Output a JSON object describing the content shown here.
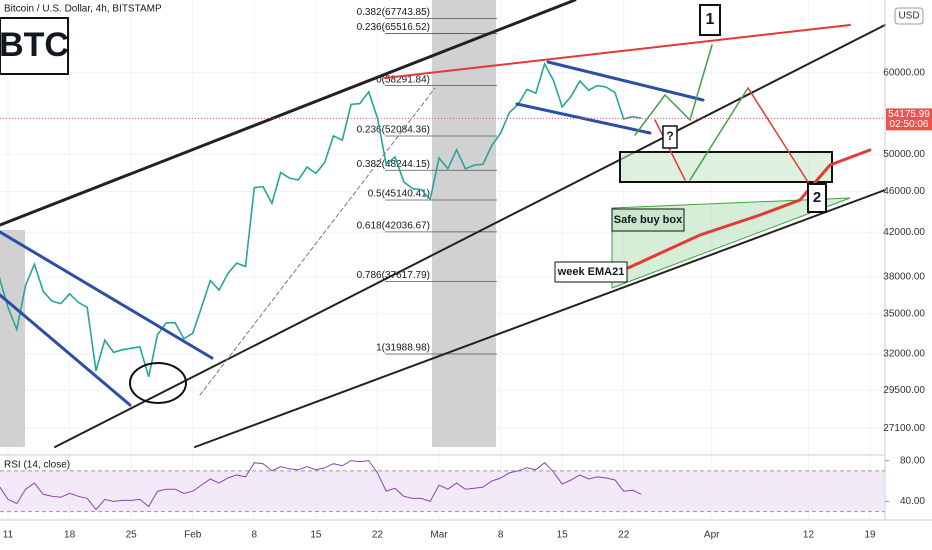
{
  "chart_data": [
    {
      "type": "line",
      "title": "Bitcoin / U.S. Dollar, 4h, BITSTAMP",
      "log_scale": true,
      "grid": true,
      "color": "#26a69a",
      "x": [
        10,
        11,
        12,
        13,
        14,
        15,
        16,
        17,
        18,
        19,
        20,
        21,
        22,
        23,
        24,
        25,
        26,
        27,
        28,
        29,
        30,
        31,
        32,
        33,
        34,
        35,
        36,
        37,
        38,
        39,
        40,
        41,
        42,
        43,
        44,
        45,
        46,
        47,
        48,
        49,
        50,
        51,
        52,
        53,
        54,
        55,
        56,
        57,
        58,
        59,
        60,
        61,
        62,
        63,
        64,
        65,
        66,
        67,
        68,
        69,
        70,
        71,
        72,
        73,
        74,
        75,
        76,
        77,
        78,
        79,
        80,
        81,
        82,
        83
      ],
      "values": [
        38000,
        35500,
        33800,
        37300,
        39100,
        36800,
        36000,
        35800,
        36600,
        35900,
        35500,
        30800,
        33000,
        32100,
        32300,
        32400,
        32500,
        30400,
        33400,
        34300,
        34300,
        33100,
        33500,
        35500,
        37700,
        36900,
        38300,
        39200,
        38900,
        46400,
        46500,
        44800,
        48000,
        47400,
        47200,
        48600,
        47900,
        49100,
        52100,
        51600,
        55900,
        56000,
        57500,
        54200,
        48900,
        49700,
        47000,
        46300,
        46200,
        45200,
        49600,
        48400,
        50500,
        48400,
        48800,
        48900,
        51000,
        52400,
        54900,
        55900,
        57800,
        57300,
        61200,
        59000,
        55600,
        56900,
        58900,
        57700,
        58300,
        58100,
        57400,
        54100,
        54400,
        54176
      ],
      "xlim": [
        10.09,
        110.7
      ],
      "xticks": [
        {
          "value": 11,
          "label": "11"
        },
        {
          "value": 18,
          "label": "18"
        },
        {
          "value": 25,
          "label": "25"
        },
        {
          "value": 32,
          "label": "Feb"
        },
        {
          "value": 39,
          "label": "8"
        },
        {
          "value": 46,
          "label": "15"
        },
        {
          "value": 53,
          "label": "22"
        },
        {
          "value": 60,
          "label": "Mar"
        },
        {
          "value": 67,
          "label": "8"
        },
        {
          "value": 74,
          "label": "15"
        },
        {
          "value": 81,
          "label": "22"
        },
        {
          "value": 91,
          "label": "Apr"
        },
        {
          "value": 102,
          "label": "12"
        },
        {
          "value": 109,
          "label": "19"
        }
      ],
      "ylim": [
        25520,
        70600
      ],
      "yticks": [
        {
          "value": 60000,
          "label": "60000.00"
        },
        {
          "value": 50000,
          "label": "50000.00"
        },
        {
          "value": 46000,
          "label": "46000.00"
        },
        {
          "value": 42000,
          "label": "42000.00"
        },
        {
          "value": 38000,
          "label": "38000.00"
        },
        {
          "value": 35000,
          "label": "35000.00"
        },
        {
          "value": 32000,
          "label": "32000.00"
        },
        {
          "value": 29500,
          "label": "29500.00"
        },
        {
          "value": 27100,
          "label": "27100.00"
        }
      ],
      "last_price": {
        "value": 54175.99,
        "label": "54175.99"
      },
      "countdown": "02:50:06",
      "currency": "USD",
      "fib_levels": [
        {
          "value": 67743.85,
          "label": "0.382(67743.85)"
        },
        {
          "value": 65516.52,
          "label": "0.236(65516.52)"
        },
        {
          "value": 58291.84,
          "label": "0(58291.84)"
        },
        {
          "value": 52084.36,
          "label": "0.236(52084.36)"
        },
        {
          "value": 48244.15,
          "label": "0.382(48244.15)"
        },
        {
          "value": 45140.41,
          "label": "0.5(45140.41)"
        },
        {
          "value": 42036.67,
          "label": "0.618(42036.67)"
        },
        {
          "value": 37617.79,
          "label": "0.786(37617.79)"
        },
        {
          "value": 31988.98,
          "label": "1(31988.98)"
        }
      ],
      "annotations": [
        "BTC",
        "1",
        "2",
        "?",
        "Safe buy box",
        "week EMA21"
      ]
    },
    {
      "type": "line",
      "title": "RSI (14, close)",
      "color": "#8e44ad",
      "x": [
        10,
        11,
        12,
        13,
        14,
        15,
        16,
        17,
        18,
        19,
        20,
        21,
        22,
        23,
        24,
        25,
        26,
        27,
        28,
        29,
        30,
        31,
        32,
        33,
        34,
        35,
        36,
        37,
        38,
        39,
        40,
        41,
        42,
        43,
        44,
        45,
        46,
        47,
        48,
        49,
        50,
        51,
        52,
        53,
        54,
        55,
        56,
        57,
        58,
        59,
        60,
        61,
        62,
        63,
        64,
        65,
        66,
        67,
        68,
        69,
        70,
        71,
        72,
        73,
        74,
        75,
        76,
        77,
        78,
        79,
        80,
        81,
        82,
        83
      ],
      "values": [
        55,
        42,
        38,
        52,
        58,
        47,
        45,
        44,
        48,
        45,
        43,
        32,
        42,
        40,
        41,
        41,
        42,
        35,
        50,
        52,
        52,
        48,
        50,
        56,
        62,
        58,
        63,
        66,
        64,
        78,
        77,
        70,
        74,
        72,
        71,
        74,
        71,
        73,
        77,
        75,
        80,
        79,
        80,
        68,
        50,
        53,
        45,
        43,
        43,
        40,
        56,
        52,
        58,
        52,
        53,
        54,
        60,
        63,
        68,
        70,
        73,
        71,
        78,
        69,
        57,
        61,
        66,
        62,
        64,
        63,
        61,
        50,
        51,
        47
      ],
      "ylim": [
        21.8,
        85.5
      ],
      "yticks": [
        {
          "value": 80,
          "label": "80.00"
        },
        {
          "value": 40,
          "label": "40.00"
        }
      ],
      "bands": [
        70,
        30
      ]
    }
  ]
}
